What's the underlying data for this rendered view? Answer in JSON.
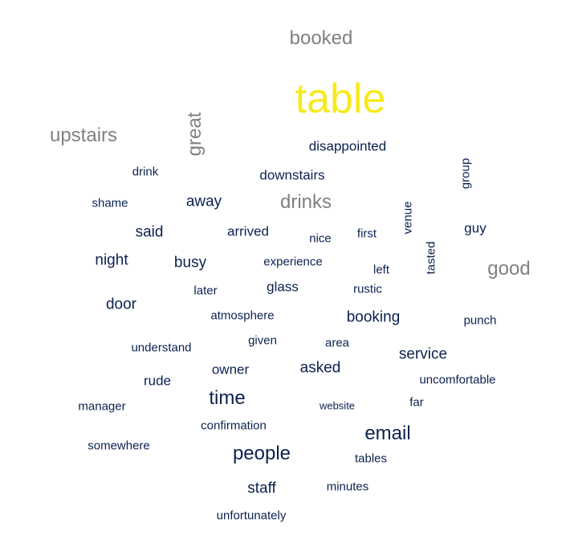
{
  "palette": {
    "highlight": "#f7e91e",
    "mid": "#808080",
    "dark": "#0b2150"
  },
  "words": [
    {
      "text": "table",
      "tone": "highlight",
      "level": 1
    },
    {
      "text": "booked",
      "tone": "mid",
      "level": 2
    },
    {
      "text": "upstairs",
      "tone": "mid",
      "level": 2
    },
    {
      "text": "great",
      "tone": "mid",
      "level": 2,
      "orientation": "vertical"
    },
    {
      "text": "drinks",
      "tone": "mid",
      "level": 2
    },
    {
      "text": "good",
      "tone": "mid",
      "level": 2
    },
    {
      "text": "disappointed",
      "tone": "dark",
      "level": 4
    },
    {
      "text": "drink",
      "tone": "dark",
      "level": 5
    },
    {
      "text": "downstairs",
      "tone": "dark",
      "level": 4
    },
    {
      "text": "group",
      "tone": "dark",
      "level": 5,
      "orientation": "vertical"
    },
    {
      "text": "shame",
      "tone": "dark",
      "level": 5
    },
    {
      "text": "away",
      "tone": "dark",
      "level": 3
    },
    {
      "text": "venue",
      "tone": "dark",
      "level": 5,
      "orientation": "vertical"
    },
    {
      "text": "said",
      "tone": "dark",
      "level": 3
    },
    {
      "text": "arrived",
      "tone": "dark",
      "level": 4
    },
    {
      "text": "nice",
      "tone": "dark",
      "level": 5
    },
    {
      "text": "first",
      "tone": "dark",
      "level": 5
    },
    {
      "text": "guy",
      "tone": "dark",
      "level": 4
    },
    {
      "text": "tasted",
      "tone": "dark",
      "level": 5,
      "orientation": "vertical"
    },
    {
      "text": "night",
      "tone": "dark",
      "level": 3
    },
    {
      "text": "busy",
      "tone": "dark",
      "level": 3
    },
    {
      "text": "experience",
      "tone": "dark",
      "level": 5
    },
    {
      "text": "left",
      "tone": "dark",
      "level": 5
    },
    {
      "text": "later",
      "tone": "dark",
      "level": 5
    },
    {
      "text": "glass",
      "tone": "dark",
      "level": 4
    },
    {
      "text": "rustic",
      "tone": "dark",
      "level": 5
    },
    {
      "text": "door",
      "tone": "dark",
      "level": 3
    },
    {
      "text": "atmosphere",
      "tone": "dark",
      "level": 5
    },
    {
      "text": "booking",
      "tone": "dark",
      "level": 3
    },
    {
      "text": "punch",
      "tone": "dark",
      "level": 5
    },
    {
      "text": "understand",
      "tone": "dark",
      "level": 5
    },
    {
      "text": "given",
      "tone": "dark",
      "level": 5
    },
    {
      "text": "area",
      "tone": "dark",
      "level": 5
    },
    {
      "text": "service",
      "tone": "dark",
      "level": 3
    },
    {
      "text": "owner",
      "tone": "dark",
      "level": 4
    },
    {
      "text": "asked",
      "tone": "dark",
      "level": 3
    },
    {
      "text": "rude",
      "tone": "dark",
      "level": 4
    },
    {
      "text": "uncomfortable",
      "tone": "dark",
      "level": 5
    },
    {
      "text": "time",
      "tone": "dark",
      "level": 2
    },
    {
      "text": "far",
      "tone": "dark",
      "level": 5
    },
    {
      "text": "manager",
      "tone": "dark",
      "level": 5
    },
    {
      "text": "website",
      "tone": "dark",
      "level": 6
    },
    {
      "text": "confirmation",
      "tone": "dark",
      "level": 5
    },
    {
      "text": "email",
      "tone": "dark",
      "level": 2
    },
    {
      "text": "somewhere",
      "tone": "dark",
      "level": 5
    },
    {
      "text": "people",
      "tone": "dark",
      "level": 2
    },
    {
      "text": "tables",
      "tone": "dark",
      "level": 5
    },
    {
      "text": "staff",
      "tone": "dark",
      "level": 3
    },
    {
      "text": "minutes",
      "tone": "dark",
      "level": 5
    },
    {
      "text": "unfortunately",
      "tone": "dark",
      "level": 5
    }
  ]
}
